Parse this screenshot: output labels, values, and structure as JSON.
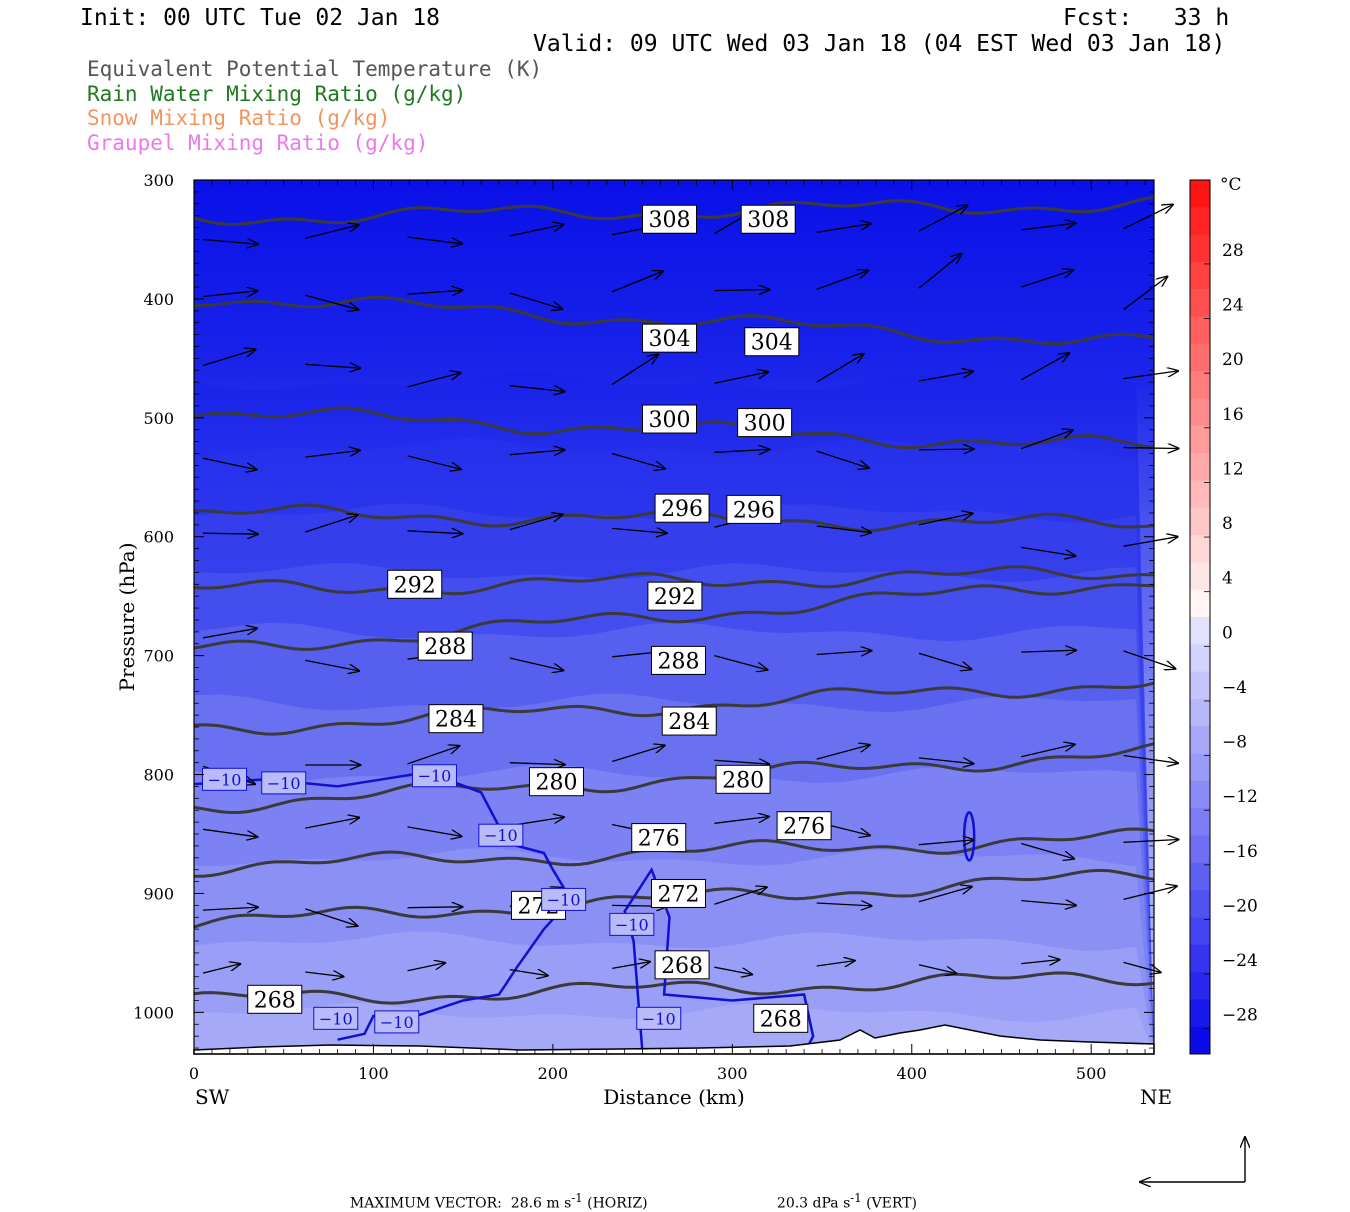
{
  "header": {
    "init": "Init: 00 UTC Tue 02 Jan 18",
    "fcst": "Fcst:   33 h",
    "valid": "Valid: 09 UTC Wed 03 Jan 18 (04 EST Wed 03 Jan 18)"
  },
  "legend": {
    "items": [
      {
        "label": "Equivalent Potential Temperature (K)",
        "color": "#555555"
      },
      {
        "label": "Rain Water Mixing Ratio (g/kg)",
        "color": "#1f7a1f"
      },
      {
        "label": "Snow Mixing Ratio (g/kg)",
        "color": "#f0955f"
      },
      {
        "label": "Graupel Mixing Ratio (g/kg)",
        "color": "#ee77ee"
      }
    ]
  },
  "footer": {
    "max_vector": "MAXIMUM VECTOR:  28.6 m s",
    "horiz_unit": "-1",
    "horiz_tag": " (HORIZ)",
    "vert": "20.3 dPa s",
    "vert_unit": "-1",
    "vert_tag": " (VERT)"
  },
  "chart_data": {
    "type": "cross-section",
    "xlabel": "Distance (km)",
    "ylabel": "Pressure (hPa)",
    "xlim": [
      0,
      535
    ],
    "ylim": [
      1035,
      300
    ],
    "x_ticks": [
      0,
      100,
      200,
      300,
      400,
      500
    ],
    "y_ticks": [
      300,
      400,
      500,
      600,
      700,
      800,
      900,
      1000
    ],
    "x_end_labels": {
      "left": "SW",
      "right": "NE"
    },
    "colorbar": {
      "unit": "°C",
      "ticks": [
        28,
        24,
        20,
        16,
        12,
        8,
        4,
        0,
        -4,
        -8,
        -12,
        -16,
        -20,
        -24,
        -28
      ],
      "range": [
        -32,
        32
      ]
    },
    "theta_e_contours": [
      {
        "value": 308,
        "labels": [
          [
            265,
            333
          ],
          [
            320,
            333
          ]
        ]
      },
      {
        "value": 304,
        "labels": [
          [
            265,
            433
          ],
          [
            322,
            436
          ]
        ]
      },
      {
        "value": 300,
        "labels": [
          [
            265,
            501
          ],
          [
            318,
            504
          ]
        ]
      },
      {
        "value": 296,
        "labels": [
          [
            272,
            576
          ],
          [
            312,
            577
          ]
        ]
      },
      {
        "value": 292,
        "labels": [
          [
            123,
            640
          ],
          [
            268,
            650
          ]
        ]
      },
      {
        "value": 288,
        "labels": [
          [
            140,
            692
          ],
          [
            270,
            704
          ]
        ]
      },
      {
        "value": 284,
        "labels": [
          [
            146,
            753
          ],
          [
            276,
            755
          ]
        ]
      },
      {
        "value": 280,
        "labels": [
          [
            202,
            806
          ],
          [
            306,
            804
          ]
        ]
      },
      {
        "value": 276,
        "labels": [
          [
            259,
            853
          ],
          [
            340,
            843
          ]
        ]
      },
      {
        "value": 272,
        "labels": [
          [
            192,
            910
          ],
          [
            270,
            900
          ]
        ]
      },
      {
        "value": 268,
        "labels": [
          [
            45,
            989
          ],
          [
            272,
            960
          ],
          [
            327,
            1005
          ]
        ]
      }
    ],
    "temperature_labels": [
      {
        "value": "−10",
        "at": [
          17,
          804
        ]
      },
      {
        "value": "−10",
        "at": [
          50,
          807
        ]
      },
      {
        "value": "−10",
        "at": [
          134,
          801
        ]
      },
      {
        "value": "−10",
        "at": [
          171,
          851
        ]
      },
      {
        "value": "−10",
        "at": [
          206,
          905
        ]
      },
      {
        "value": "−10",
        "at": [
          244,
          926
        ]
      },
      {
        "value": "−10",
        "at": [
          79,
          1005
        ]
      },
      {
        "value": "−10",
        "at": [
          113,
          1008
        ]
      },
      {
        "value": "−10",
        "at": [
          259,
          1005
        ]
      }
    ]
  }
}
